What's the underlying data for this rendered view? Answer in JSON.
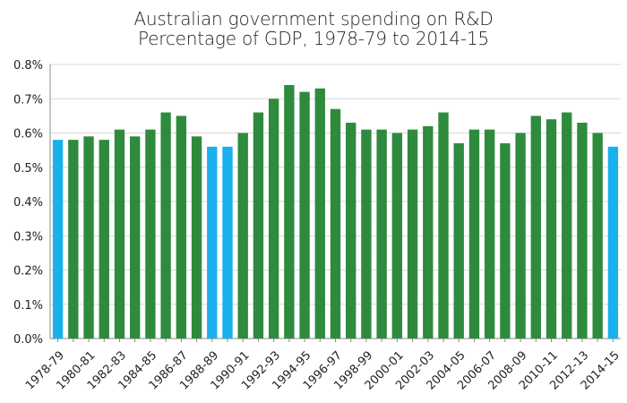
{
  "chart_data": {
    "type": "bar",
    "title": "Australian government spending on R&D",
    "subtitle": "Percentage of GDP, 1978-79 to 2014-15",
    "xlabel": "",
    "ylabel": "",
    "ylim": [
      0,
      0.8
    ],
    "y_ticks": [
      "0.0%",
      "0.1%",
      "0.2%",
      "0.3%",
      "0.4%",
      "0.5%",
      "0.6%",
      "0.7%",
      "0.8%"
    ],
    "y_tick_values": [
      0,
      0.1,
      0.2,
      0.3,
      0.4,
      0.5,
      0.6,
      0.7,
      0.8
    ],
    "grid": true,
    "categories": [
      "1978-79",
      "1979-80",
      "1980-81",
      "1981-82",
      "1982-83",
      "1983-84",
      "1984-85",
      "1985-86",
      "1986-87",
      "1987-88",
      "1988-89",
      "1989-90",
      "1990-91",
      "1991-92",
      "1992-93",
      "1993-94",
      "1994-95",
      "1995-96",
      "1996-97",
      "1997-98",
      "1998-99",
      "1999-00",
      "2000-01",
      "2001-02",
      "2002-03",
      "2003-04",
      "2004-05",
      "2005-06",
      "2006-07",
      "2007-08",
      "2008-09",
      "2009-10",
      "2010-11",
      "2011-12",
      "2012-13",
      "2013-14",
      "2014-15"
    ],
    "x_tick_labels": [
      "1978-79",
      "1980-81",
      "1982-83",
      "1984-85",
      "1986-87",
      "1988-89",
      "1990-91",
      "1992-93",
      "1994-95",
      "1996-97",
      "1998-99",
      "2000-01",
      "2002-03",
      "2004-05",
      "2006-07",
      "2008-09",
      "2010-11",
      "2012-13",
      "2014-15"
    ],
    "values": [
      0.58,
      0.58,
      0.59,
      0.58,
      0.61,
      0.59,
      0.61,
      0.66,
      0.65,
      0.59,
      0.56,
      0.56,
      0.6,
      0.66,
      0.7,
      0.74,
      0.72,
      0.73,
      0.67,
      0.63,
      0.61,
      0.61,
      0.6,
      0.61,
      0.62,
      0.66,
      0.57,
      0.61,
      0.61,
      0.57,
      0.6,
      0.65,
      0.64,
      0.66,
      0.63,
      0.6,
      0.56
    ],
    "highlighted": [
      true,
      false,
      false,
      false,
      false,
      false,
      false,
      false,
      false,
      false,
      true,
      true,
      false,
      false,
      false,
      false,
      false,
      false,
      false,
      false,
      false,
      false,
      false,
      false,
      false,
      false,
      false,
      false,
      false,
      false,
      false,
      false,
      false,
      false,
      false,
      false,
      true
    ],
    "colors": {
      "default": "#2e8b3e",
      "highlight": "#1ab0ec",
      "grid": "#d9d9d9",
      "axis": "#888888"
    }
  }
}
